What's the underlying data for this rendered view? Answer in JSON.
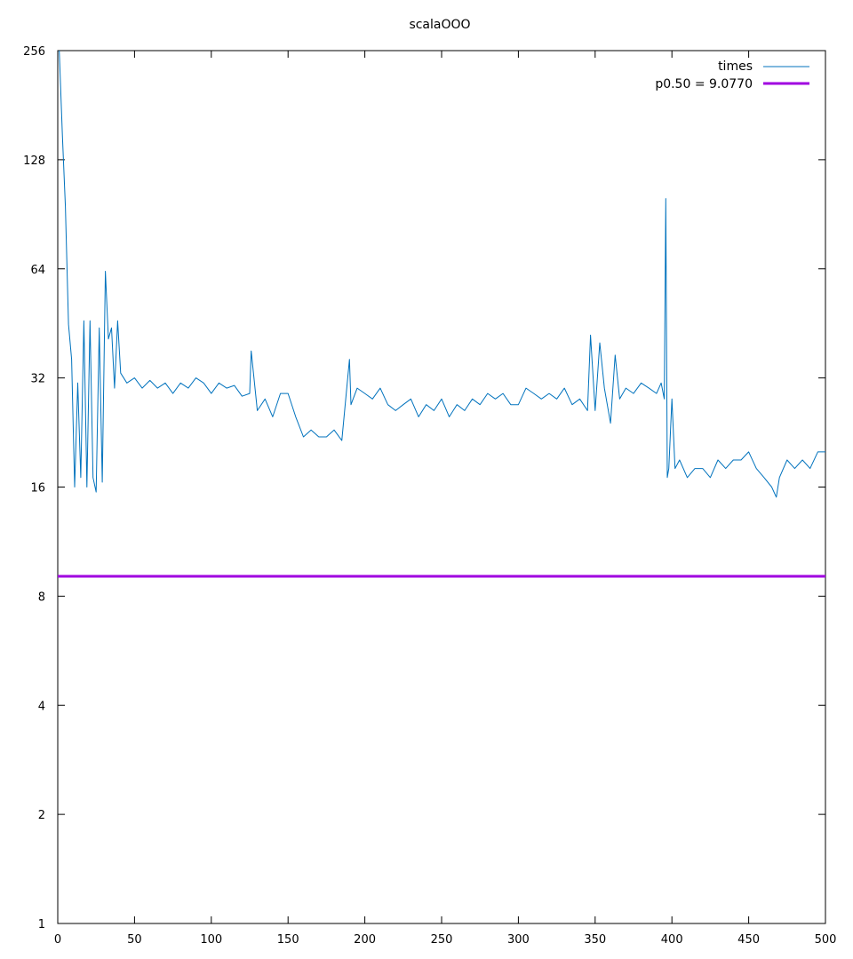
{
  "chart_data": {
    "type": "line",
    "title": "scalaOOO",
    "xlabel": "",
    "ylabel": "",
    "xlim": [
      0,
      500
    ],
    "ylim": [
      1,
      256
    ],
    "yscale": "log2",
    "grid": false,
    "legend_position": "top-right",
    "x_ticks": [
      0,
      50,
      100,
      150,
      200,
      250,
      300,
      350,
      400,
      450,
      500
    ],
    "y_ticks": [
      1,
      2,
      4,
      8,
      16,
      32,
      64,
      128,
      256
    ],
    "series": [
      {
        "name": "times",
        "color": "#0072bd",
        "x": [
          1,
          3,
          5,
          7,
          9,
          11,
          13,
          15,
          17,
          19,
          21,
          23,
          25,
          27,
          29,
          31,
          33,
          35,
          37,
          39,
          41,
          45,
          50,
          55,
          60,
          65,
          70,
          75,
          80,
          85,
          90,
          95,
          100,
          105,
          110,
          115,
          120,
          125,
          126,
          130,
          135,
          140,
          145,
          150,
          155,
          160,
          165,
          170,
          175,
          180,
          185,
          190,
          191,
          195,
          200,
          205,
          210,
          215,
          220,
          225,
          230,
          235,
          240,
          245,
          250,
          255,
          260,
          265,
          270,
          275,
          280,
          285,
          290,
          295,
          300,
          305,
          310,
          315,
          320,
          325,
          330,
          335,
          340,
          345,
          347,
          350,
          353,
          356,
          360,
          363,
          366,
          370,
          375,
          380,
          385,
          390,
          393,
          395,
          396,
          397,
          398,
          400,
          402,
          405,
          410,
          415,
          420,
          425,
          430,
          435,
          440,
          445,
          450,
          455,
          460,
          465,
          468,
          470,
          475,
          480,
          485,
          490,
          495,
          500
        ],
        "values": [
          256,
          150,
          95,
          45,
          36,
          16,
          31,
          17,
          46,
          16,
          46,
          17,
          15.5,
          44,
          16.5,
          63,
          41,
          44,
          30,
          46,
          33,
          31,
          32,
          30,
          31.5,
          30,
          31,
          29,
          31,
          30,
          32,
          31,
          29,
          31,
          30,
          30.5,
          28.5,
          29,
          38,
          26,
          28,
          25,
          29,
          29,
          25,
          22,
          23,
          22,
          22,
          23,
          21.5,
          36,
          27,
          30,
          29,
          28,
          30,
          27,
          26,
          27,
          28,
          25,
          27,
          26,
          28,
          25,
          27,
          26,
          28,
          27,
          29,
          28,
          29,
          27,
          27,
          30,
          29,
          28,
          29,
          28,
          30,
          27,
          28,
          26,
          42,
          26,
          40,
          30,
          24,
          37,
          28,
          30,
          29,
          31,
          30,
          29,
          31,
          28,
          100,
          17,
          18,
          28,
          18,
          19,
          17,
          18,
          18,
          17,
          19,
          18,
          19,
          19,
          20,
          18,
          17,
          16,
          15,
          17,
          19,
          18,
          19,
          18,
          20,
          20
        ]
      },
      {
        "name": "p0.50 = 9.0770",
        "color": "#a000e0",
        "constant": 9.077
      }
    ]
  }
}
